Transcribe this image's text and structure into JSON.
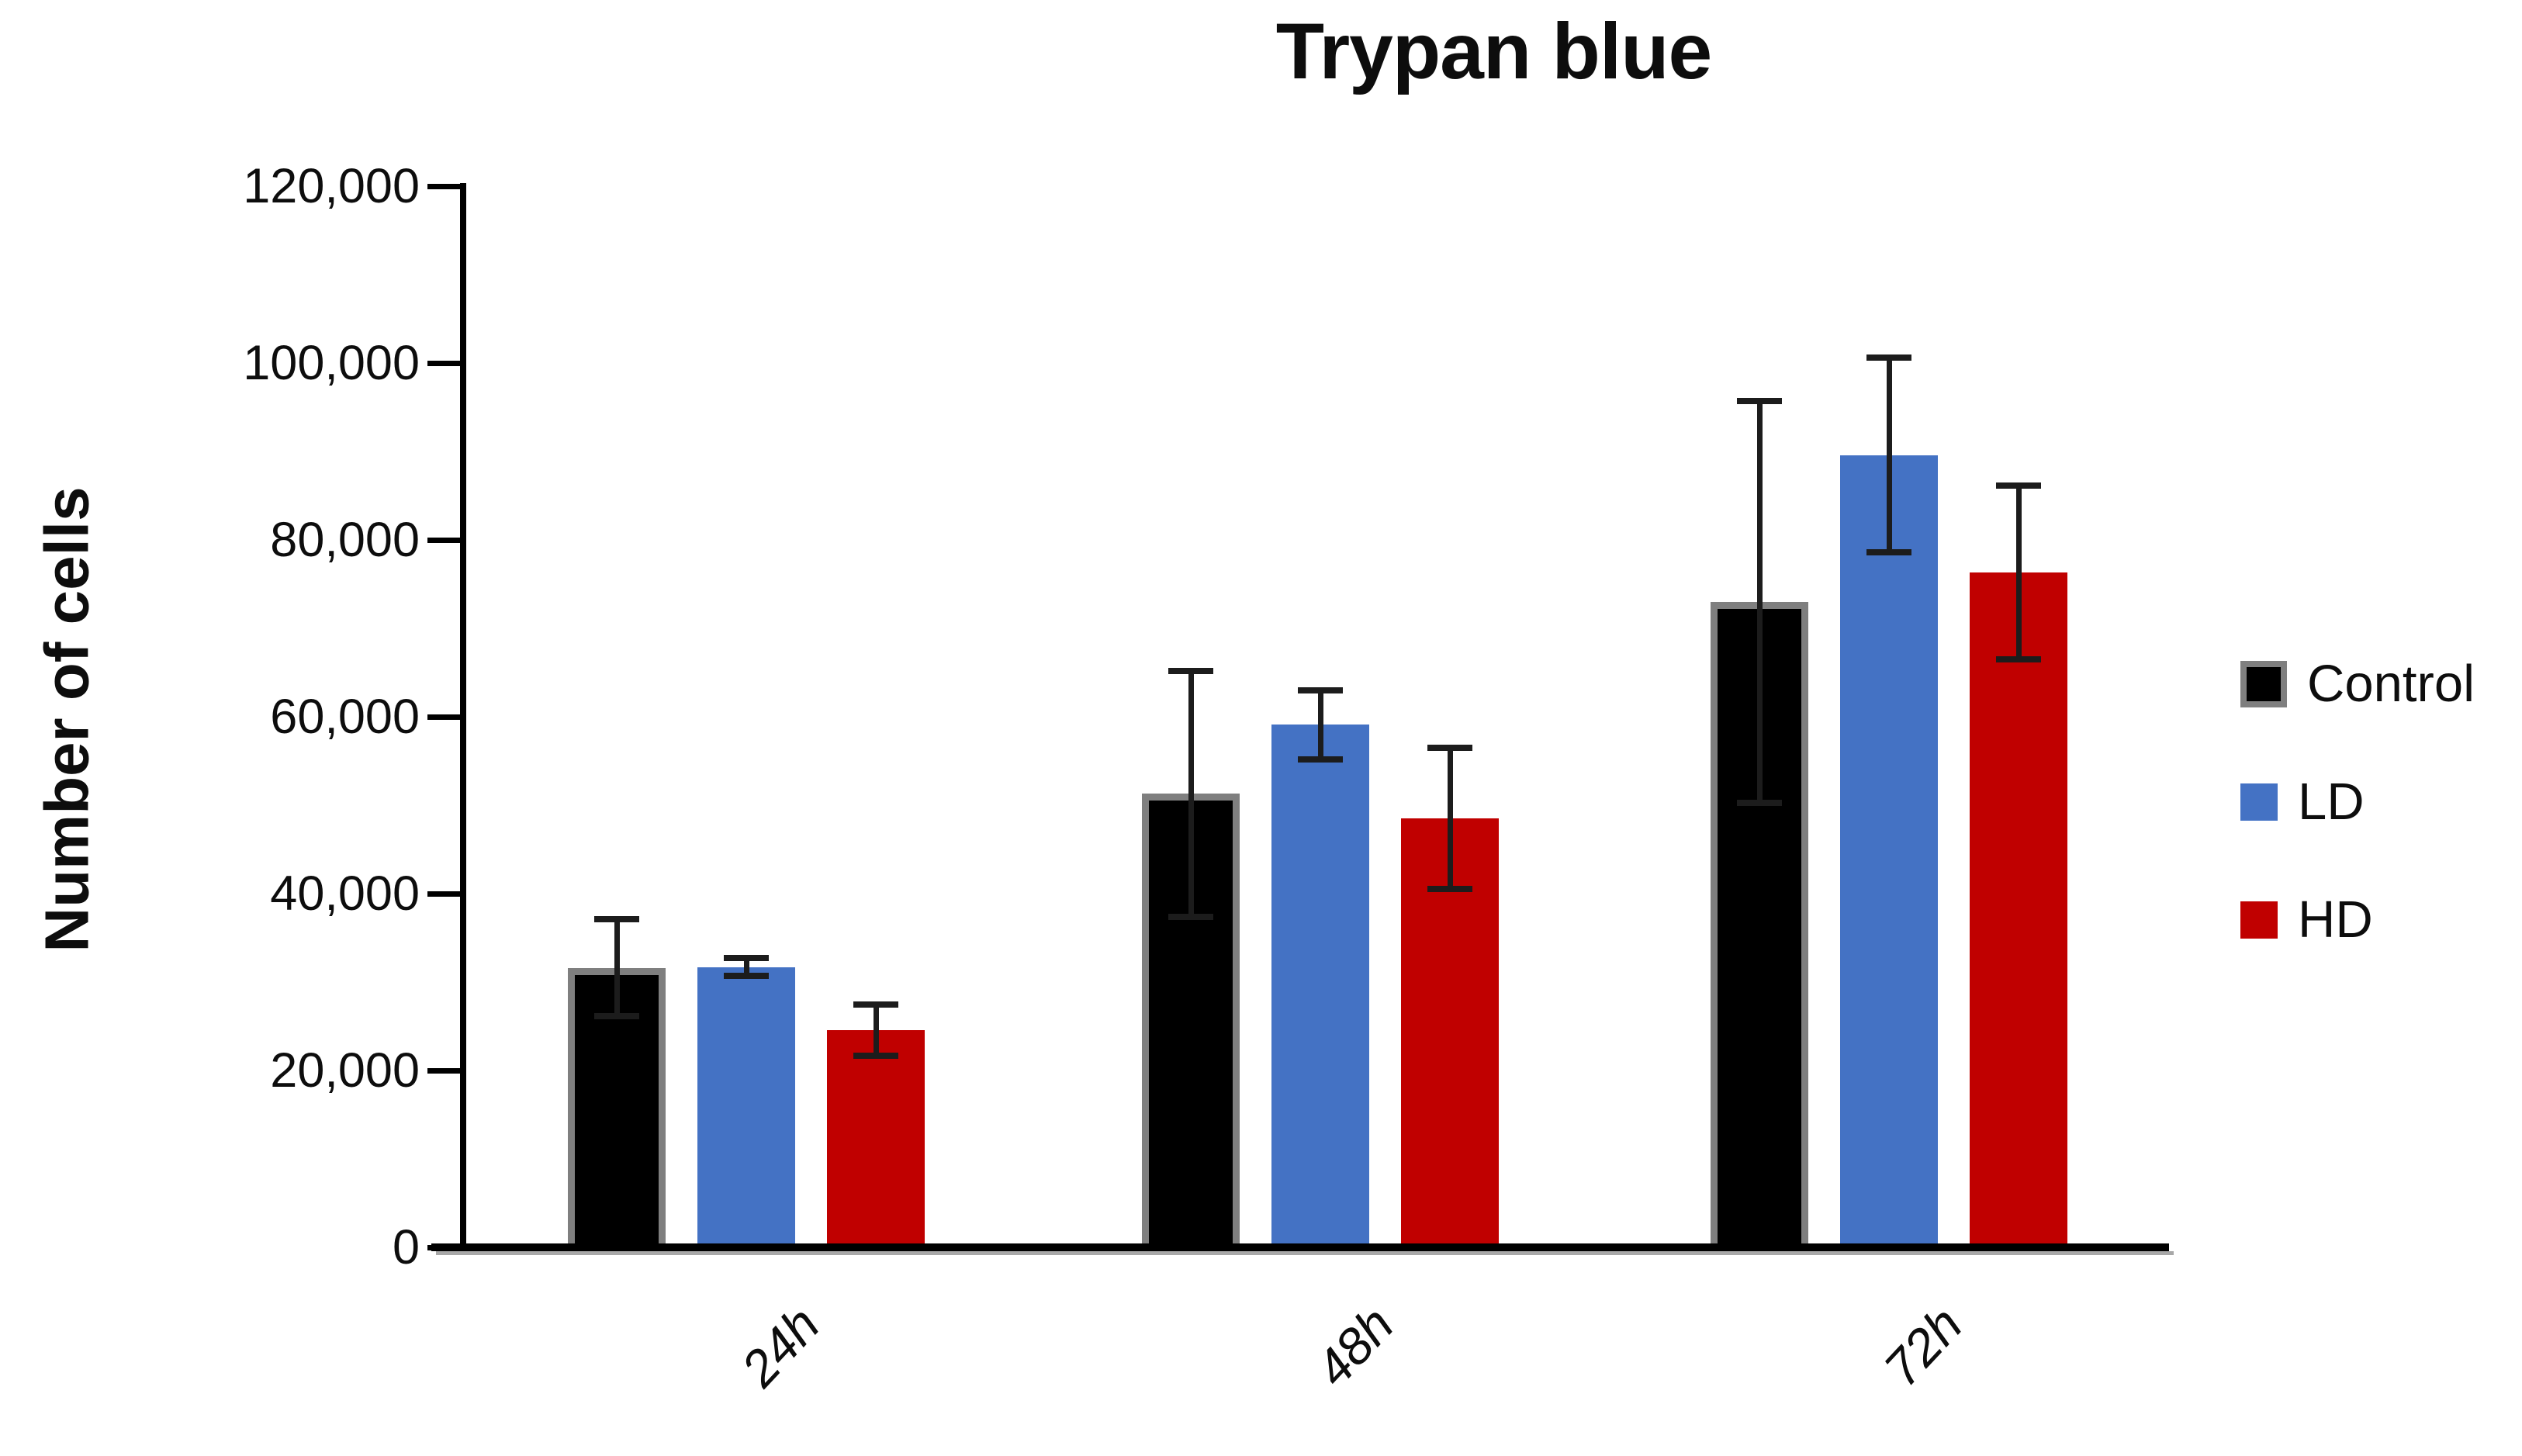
{
  "title": "Trypan blue",
  "y_axis": {
    "label": "Number of cells",
    "tick_labels": [
      "0",
      "20,000",
      "40,000",
      "60,000",
      "80,000",
      "100,000",
      "120,000"
    ],
    "min": 0,
    "max": 120000,
    "step": 20000
  },
  "x_axis": {
    "categories": [
      "24h",
      "48h",
      "72h"
    ]
  },
  "legend": {
    "position": "right",
    "entries": [
      "Control",
      "LD",
      "HD"
    ]
  },
  "colors": {
    "control_fill": "#000000",
    "control_border": "#7f7f7f",
    "ld_fill": "#4472c4",
    "hd_fill": "#c00000",
    "axis": "#000000",
    "error_bar": "#1c1c1c"
  },
  "chart_data": {
    "type": "bar",
    "title": "Trypan blue",
    "xlabel": "",
    "ylabel": "Number of cells",
    "ylim": [
      0,
      120000
    ],
    "ytick_step": 20000,
    "grid": false,
    "legend_position": "right",
    "categories": [
      "24h",
      "48h",
      "72h"
    ],
    "series": [
      {
        "name": "Control",
        "color": "#000000",
        "border_color": "#7f7f7f",
        "values": [
          31600,
          51300,
          73000
        ],
        "errors": [
          5500,
          13900,
          22700
        ]
      },
      {
        "name": "LD",
        "color": "#4472c4",
        "border_color": "",
        "values": [
          31700,
          59100,
          89600
        ],
        "errors": [
          1000,
          3900,
          11000
        ]
      },
      {
        "name": "HD",
        "color": "#c00000",
        "border_color": "",
        "values": [
          24600,
          48500,
          76300
        ],
        "errors": [
          2900,
          8000,
          9800
        ]
      }
    ]
  }
}
